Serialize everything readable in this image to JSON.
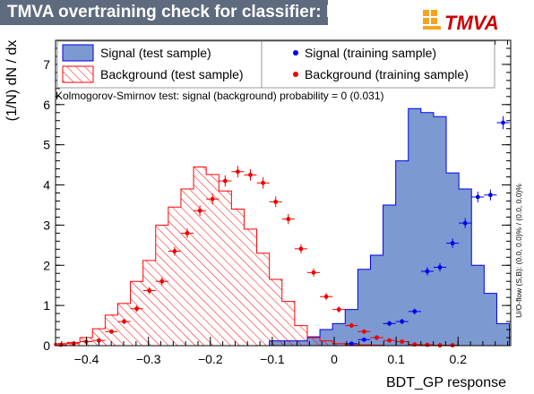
{
  "window": {
    "title": "TMVA overtraining check for classifier: BDT_GP",
    "logo_text": "TMVA"
  },
  "colors": {
    "signal_fill": "#7c99d1",
    "signal_line": "#0000ee",
    "background_hatch": "#ff0000",
    "background_points": "#ee0000",
    "title_bg": "#5e6a7e",
    "logo_orange": "#f7a31e"
  },
  "chart_data": {
    "type": "histogram",
    "xlabel": "BDT_GP response",
    "ylabel": "(1/N) dN / dx",
    "xlim": [
      -0.45,
      0.285
    ],
    "ylim": [
      0,
      7.6
    ],
    "x_ticks": [
      -0.4,
      -0.3,
      -0.2,
      -0.1,
      0,
      0.1,
      0.2
    ],
    "x_tick_labels": [
      "−0.4",
      "−0.3",
      "−0.2",
      "−0.1",
      "0",
      "0.1",
      "0.2"
    ],
    "y_ticks": [
      0,
      1,
      2,
      3,
      4,
      5,
      6,
      7
    ],
    "y_tick_labels": [
      "0",
      "1",
      "2",
      "3",
      "4",
      "5",
      "6",
      "7"
    ],
    "annotation": "Kolmogorov-Smirnov test: signal (background) probability =     0 (0.031)",
    "side_note": "U/O-flow (S,B): (0.0, 0.0)% / (0.0, 0.0)%",
    "legend": [
      {
        "label": "Signal (test sample)",
        "style": "filled"
      },
      {
        "label": "Background (test sample)",
        "style": "hatched"
      },
      {
        "label": "Signal (training sample)",
        "style": "marker-blue"
      },
      {
        "label": "Background (training sample)",
        "style": "marker-red"
      }
    ],
    "bin_edges": [
      -0.4515,
      -0.4311,
      -0.4107,
      -0.3903,
      -0.3699,
      -0.3495,
      -0.3291,
      -0.3087,
      -0.2883,
      -0.2679,
      -0.2475,
      -0.2271,
      -0.2067,
      -0.1863,
      -0.1659,
      -0.1455,
      -0.1251,
      -0.1047,
      -0.0843,
      -0.0639,
      -0.0435,
      -0.0231,
      -0.0027,
      0.0177,
      0.0381,
      0.0585,
      0.0789,
      0.0993,
      0.1197,
      0.1401,
      0.1605,
      0.1809,
      0.2013,
      0.2217,
      0.2421,
      0.2625,
      0.2829
    ],
    "series": [
      {
        "name": "Signal (test sample)",
        "values": [
          0,
          0,
          0,
          0,
          0,
          0,
          0,
          0,
          0,
          0,
          0,
          0,
          0,
          0,
          0,
          0,
          0,
          0.12,
          0.12,
          0.12,
          0.22,
          0.4,
          0.55,
          0.9,
          1.9,
          2.25,
          3.5,
          4.6,
          5.9,
          5.8,
          5.7,
          4.3,
          3.9,
          2.0,
          1.3,
          0.55
        ]
      },
      {
        "name": "Background (test sample)",
        "values": [
          0.05,
          0.08,
          0.2,
          0.42,
          0.76,
          1.05,
          1.6,
          2.12,
          3.0,
          3.45,
          3.9,
          4.45,
          4.26,
          3.85,
          3.4,
          2.9,
          2.3,
          1.65,
          1.1,
          0.5,
          0.2,
          0.12,
          0.05,
          0.02,
          0.02,
          0.01,
          0,
          0,
          0,
          0,
          0,
          0,
          0,
          0,
          0,
          0
        ]
      },
      {
        "name": "Signal (training sample)",
        "values": [
          null,
          null,
          null,
          null,
          null,
          null,
          null,
          null,
          null,
          null,
          null,
          null,
          null,
          null,
          null,
          null,
          null,
          null,
          null,
          null,
          null,
          null,
          null,
          0.05,
          0.15,
          0.2,
          0.55,
          0.6,
          0.85,
          1.85,
          1.95,
          2.55,
          3.05,
          3.7,
          3.75,
          5.55
        ]
      },
      {
        "name": "Background (training sample)",
        "values": [
          0.02,
          0.05,
          0.1,
          0.13,
          0.35,
          0.6,
          0.92,
          1.37,
          1.6,
          2.35,
          2.8,
          3.36,
          3.65,
          4.1,
          4.33,
          4.25,
          4.05,
          3.58,
          3.15,
          2.41,
          1.82,
          1.22,
          0.9,
          0.5,
          0.35,
          0.2,
          0.13,
          0.1,
          0.03,
          0.02,
          0.01,
          0.01,
          null,
          null,
          null,
          null
        ]
      }
    ]
  }
}
